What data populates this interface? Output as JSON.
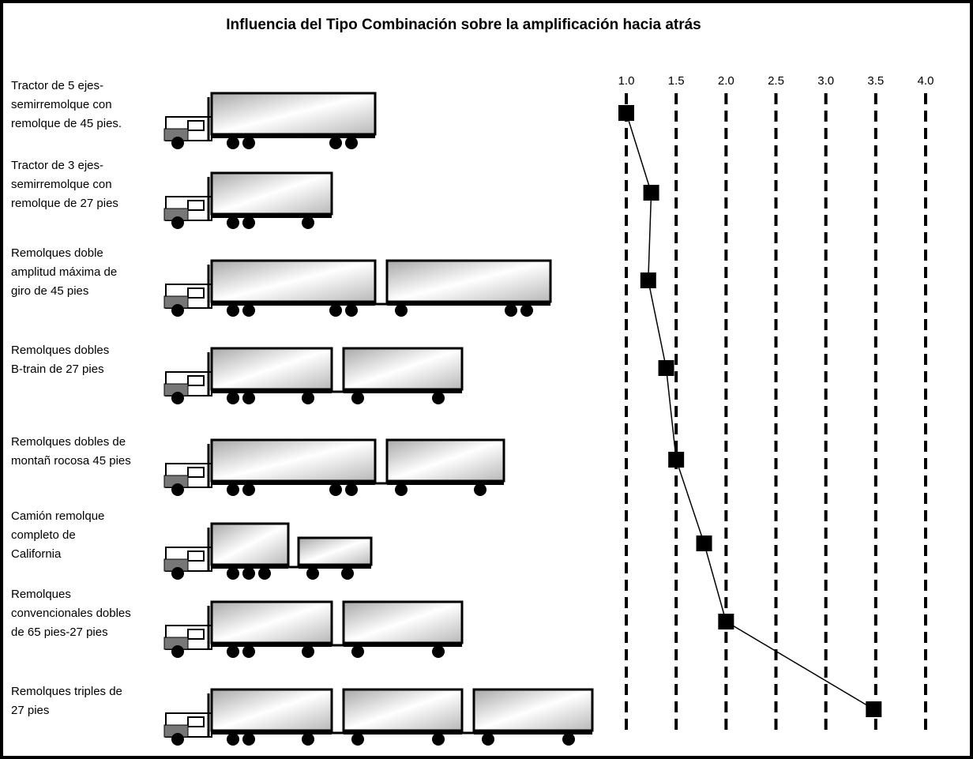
{
  "chart_data": {
    "type": "line",
    "title": "Influencia del Tipo Combinación sobre la amplificación hacia atrás",
    "categories": [
      [
        "Tractor de 5 ejes-",
        "semirremolque con",
        "remolque de 45 pies."
      ],
      [
        "Tractor de 3 ejes-",
        "semirremolque con",
        "remolque de 27 pies"
      ],
      [
        "Remolques doble",
        "amplitud máxima de",
        "giro de 45 pies"
      ],
      [
        "Remolques dobles",
        "B-train de 27 pies"
      ],
      [
        "Remolques dobles de",
        "montañ rocosa 45 pies"
      ],
      [
        "Camión remolque",
        "completo de",
        "California"
      ],
      [
        "Remolques",
        "convencionales dobles",
        "de 65 pies-27 pies"
      ],
      [
        "Remolques triples de",
        "27 pies"
      ]
    ],
    "values": [
      1.0,
      1.25,
      1.22,
      1.4,
      1.5,
      1.78,
      2.0,
      3.48
    ],
    "color": "#000000",
    "xlim": [
      1,
      4
    ],
    "xticks": [
      {
        "value": 1,
        "label": "1.0"
      },
      1.5,
      {
        "value": 2,
        "label": "2.0"
      },
      2.5,
      {
        "value": 3,
        "label": "3.0"
      },
      3.5,
      {
        "value": 4,
        "label": "4.0"
      }
    ],
    "grid": true
  }
}
